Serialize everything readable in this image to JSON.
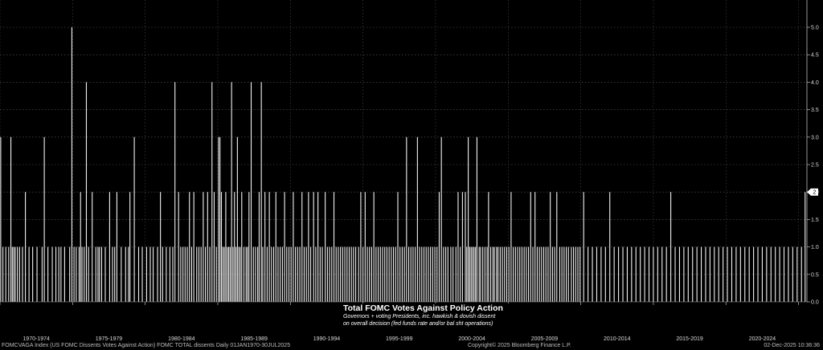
{
  "chart_data": {
    "type": "bar",
    "title": "Total FOMC Votes Against Policy Action",
    "subtitle_lines": [
      "Governors + voting Presidents, inc. hawkish & dovish dissent",
      "on overall decision (fed funds rate and/or bal sht operations)"
    ],
    "x_tick_labels": [
      "1970-1974",
      "1975-1979",
      "1980-1984",
      "1985-1989",
      "1990-1994",
      "1995-1999",
      "2000-2004",
      "2005-2009",
      "2010-2014",
      "2015-2019",
      "2020-2024"
    ],
    "xlim": [
      "1970-01-01",
      "2025-07-30"
    ],
    "y_tick_labels": [
      "0.0",
      "0.5",
      "1.0",
      "1.5",
      "2.0",
      "2.5",
      "3.0",
      "3.5",
      "4.0",
      "4.5",
      "5.0"
    ],
    "ylim": [
      0,
      5.3
    ],
    "grid": true,
    "last_value_label": "2",
    "series": [
      {
        "points": [
          [
            1970.05,
            3
          ],
          [
            1970.2,
            1
          ],
          [
            1970.4,
            1
          ],
          [
            1970.6,
            1
          ],
          [
            1970.75,
            3
          ],
          [
            1970.85,
            1
          ],
          [
            1970.95,
            1
          ],
          [
            1971.05,
            1
          ],
          [
            1971.2,
            1
          ],
          [
            1971.35,
            1
          ],
          [
            1971.55,
            1
          ],
          [
            1971.75,
            2
          ],
          [
            1972.0,
            1
          ],
          [
            1972.25,
            1
          ],
          [
            1972.55,
            1
          ],
          [
            1972.9,
            1
          ],
          [
            1973.05,
            3
          ],
          [
            1973.3,
            1
          ],
          [
            1973.6,
            1
          ],
          [
            1973.85,
            1
          ],
          [
            1974.05,
            1
          ],
          [
            1974.2,
            1
          ],
          [
            1974.45,
            1
          ],
          [
            1974.8,
            1
          ],
          [
            1974.95,
            5
          ],
          [
            1975.1,
            1
          ],
          [
            1975.25,
            1
          ],
          [
            1975.45,
            1
          ],
          [
            1975.55,
            2
          ],
          [
            1975.65,
            1
          ],
          [
            1975.8,
            1
          ],
          [
            1975.95,
            4
          ],
          [
            1976.1,
            1
          ],
          [
            1976.35,
            2
          ],
          [
            1976.6,
            1
          ],
          [
            1976.75,
            1
          ],
          [
            1976.85,
            1
          ],
          [
            1977.0,
            1
          ],
          [
            1977.25,
            1
          ],
          [
            1977.55,
            2
          ],
          [
            1977.75,
            1
          ],
          [
            1977.9,
            1
          ],
          [
            1978.05,
            2
          ],
          [
            1978.35,
            1
          ],
          [
            1978.65,
            1
          ],
          [
            1978.85,
            1
          ],
          [
            1978.95,
            2
          ],
          [
            1979.25,
            3
          ],
          [
            1979.55,
            1
          ],
          [
            1979.8,
            1
          ],
          [
            1980.1,
            1
          ],
          [
            1980.35,
            1
          ],
          [
            1980.55,
            1
          ],
          [
            1980.85,
            1
          ],
          [
            1981.05,
            2
          ],
          [
            1981.2,
            1
          ],
          [
            1981.45,
            1
          ],
          [
            1981.7,
            1
          ],
          [
            1981.9,
            1
          ],
          [
            1982.05,
            4
          ],
          [
            1982.3,
            2
          ],
          [
            1982.45,
            1
          ],
          [
            1982.6,
            1
          ],
          [
            1982.75,
            1
          ],
          [
            1982.9,
            1
          ],
          [
            1983.05,
            2
          ],
          [
            1983.2,
            1
          ],
          [
            1983.35,
            2
          ],
          [
            1983.55,
            1
          ],
          [
            1983.7,
            1
          ],
          [
            1983.85,
            1
          ],
          [
            1984.0,
            2
          ],
          [
            1984.15,
            1
          ],
          [
            1984.3,
            2
          ],
          [
            1984.45,
            1
          ],
          [
            1984.6,
            4
          ],
          [
            1984.75,
            2
          ],
          [
            1984.9,
            1
          ],
          [
            1985.05,
            3
          ],
          [
            1985.15,
            3
          ],
          [
            1985.25,
            2
          ],
          [
            1985.35,
            1
          ],
          [
            1985.45,
            1
          ],
          [
            1985.55,
            2
          ],
          [
            1985.65,
            1
          ],
          [
            1985.75,
            1
          ],
          [
            1985.85,
            1
          ],
          [
            1985.95,
            4
          ],
          [
            1986.05,
            1
          ],
          [
            1986.15,
            2
          ],
          [
            1986.25,
            1
          ],
          [
            1986.35,
            3
          ],
          [
            1986.45,
            1
          ],
          [
            1986.55,
            1
          ],
          [
            1986.65,
            2
          ],
          [
            1986.8,
            1
          ],
          [
            1986.95,
            1
          ],
          [
            1987.05,
            1
          ],
          [
            1987.15,
            2
          ],
          [
            1987.3,
            4
          ],
          [
            1987.45,
            1
          ],
          [
            1987.6,
            1
          ],
          [
            1987.75,
            1
          ],
          [
            1987.85,
            2
          ],
          [
            1988.0,
            4
          ],
          [
            1988.1,
            1
          ],
          [
            1988.25,
            2
          ],
          [
            1988.4,
            1
          ],
          [
            1988.55,
            2
          ],
          [
            1988.7,
            1
          ],
          [
            1988.85,
            1
          ],
          [
            1989.0,
            2
          ],
          [
            1989.15,
            1
          ],
          [
            1989.3,
            1
          ],
          [
            1989.45,
            1
          ],
          [
            1989.6,
            2
          ],
          [
            1989.75,
            1
          ],
          [
            1989.9,
            1
          ],
          [
            1990.05,
            1
          ],
          [
            1990.2,
            2
          ],
          [
            1990.35,
            1
          ],
          [
            1990.5,
            1
          ],
          [
            1990.65,
            1
          ],
          [
            1990.8,
            2
          ],
          [
            1990.95,
            1
          ],
          [
            1991.1,
            1
          ],
          [
            1991.25,
            2
          ],
          [
            1991.4,
            1
          ],
          [
            1991.6,
            2
          ],
          [
            1991.75,
            1
          ],
          [
            1991.9,
            2
          ],
          [
            1992.05,
            1
          ],
          [
            1992.2,
            1
          ],
          [
            1992.4,
            2
          ],
          [
            1992.55,
            1
          ],
          [
            1992.7,
            1
          ],
          [
            1992.85,
            1
          ],
          [
            1993.0,
            2
          ],
          [
            1993.15,
            1
          ],
          [
            1993.3,
            1
          ],
          [
            1993.45,
            1
          ],
          [
            1993.6,
            1
          ],
          [
            1993.75,
            1
          ],
          [
            1993.9,
            1
          ],
          [
            1994.05,
            1
          ],
          [
            1994.2,
            1
          ],
          [
            1994.35,
            1
          ],
          [
            1994.5,
            1
          ],
          [
            1994.7,
            1
          ],
          [
            1994.85,
            2
          ],
          [
            1995.0,
            1
          ],
          [
            1995.15,
            2
          ],
          [
            1995.3,
            1
          ],
          [
            1995.45,
            1
          ],
          [
            1995.6,
            1
          ],
          [
            1995.75,
            2
          ],
          [
            1995.9,
            1
          ],
          [
            1996.05,
            1
          ],
          [
            1996.2,
            1
          ],
          [
            1996.35,
            1
          ],
          [
            1996.5,
            1
          ],
          [
            1996.65,
            1
          ],
          [
            1996.8,
            1
          ],
          [
            1996.95,
            1
          ],
          [
            1997.1,
            1
          ],
          [
            1997.25,
            1
          ],
          [
            1997.4,
            2
          ],
          [
            1997.55,
            1
          ],
          [
            1997.7,
            1
          ],
          [
            1997.85,
            1
          ],
          [
            1998.0,
            3
          ],
          [
            1998.15,
            1
          ],
          [
            1998.3,
            1
          ],
          [
            1998.45,
            1
          ],
          [
            1998.6,
            1
          ],
          [
            1998.75,
            3
          ],
          [
            1998.9,
            1
          ],
          [
            1999.05,
            1
          ],
          [
            1999.2,
            1
          ],
          [
            1999.35,
            1
          ],
          [
            1999.5,
            1
          ],
          [
            1999.65,
            1
          ],
          [
            1999.8,
            1
          ],
          [
            1999.95,
            1
          ],
          [
            2000.1,
            1
          ],
          [
            2000.25,
            2
          ],
          [
            2000.4,
            3
          ],
          [
            2000.55,
            1
          ],
          [
            2000.7,
            1
          ],
          [
            2000.85,
            1
          ],
          [
            2001.05,
            1
          ],
          [
            2001.2,
            1
          ],
          [
            2001.4,
            1
          ],
          [
            2001.55,
            2
          ],
          [
            2001.7,
            1
          ],
          [
            2001.85,
            2
          ],
          [
            2002.05,
            2
          ],
          [
            2002.15,
            1
          ],
          [
            2002.25,
            3
          ],
          [
            2002.35,
            1
          ],
          [
            2002.45,
            1
          ],
          [
            2002.55,
            1
          ],
          [
            2002.65,
            1
          ],
          [
            2002.75,
            1
          ],
          [
            2002.85,
            3
          ],
          [
            2003.0,
            1
          ],
          [
            2003.1,
            1
          ],
          [
            2003.25,
            1
          ],
          [
            2003.4,
            1
          ],
          [
            2003.55,
            1
          ],
          [
            2003.65,
            2
          ],
          [
            2003.8,
            1
          ],
          [
            2003.95,
            1
          ],
          [
            2004.05,
            1
          ],
          [
            2004.2,
            1
          ],
          [
            2004.3,
            1
          ],
          [
            2004.45,
            1
          ],
          [
            2004.6,
            1
          ],
          [
            2004.75,
            1
          ],
          [
            2004.9,
            1
          ],
          [
            2005.05,
            1
          ],
          [
            2005.2,
            2
          ],
          [
            2005.35,
            1
          ],
          [
            2005.5,
            1
          ],
          [
            2005.65,
            1
          ],
          [
            2005.8,
            1
          ],
          [
            2005.95,
            1
          ],
          [
            2006.1,
            1
          ],
          [
            2006.25,
            1
          ],
          [
            2006.4,
            1
          ],
          [
            2006.55,
            2
          ],
          [
            2006.7,
            1
          ],
          [
            2006.85,
            2
          ],
          [
            2007.0,
            1
          ],
          [
            2007.15,
            1
          ],
          [
            2007.3,
            1
          ],
          [
            2007.45,
            1
          ],
          [
            2007.6,
            1
          ],
          [
            2007.75,
            1
          ],
          [
            2007.9,
            2
          ],
          [
            2008.05,
            1
          ],
          [
            2008.2,
            1
          ],
          [
            2008.35,
            2
          ],
          [
            2008.55,
            1
          ],
          [
            2008.7,
            1
          ],
          [
            2008.85,
            1
          ],
          [
            2009.0,
            1
          ],
          [
            2009.15,
            1
          ],
          [
            2009.35,
            1
          ],
          [
            2009.5,
            1
          ],
          [
            2009.65,
            1
          ],
          [
            2009.8,
            1
          ],
          [
            2009.95,
            1
          ],
          [
            2010.2,
            2
          ],
          [
            2010.5,
            1
          ],
          [
            2010.8,
            1
          ],
          [
            2011.1,
            1
          ],
          [
            2011.4,
            1
          ],
          [
            2011.7,
            1
          ],
          [
            2012.0,
            2
          ],
          [
            2012.3,
            1
          ],
          [
            2012.6,
            1
          ],
          [
            2012.9,
            1
          ],
          [
            2013.2,
            1
          ],
          [
            2013.5,
            1
          ],
          [
            2013.8,
            1
          ],
          [
            2014.1,
            1
          ],
          [
            2014.4,
            1
          ],
          [
            2014.7,
            1
          ],
          [
            2015.0,
            1
          ],
          [
            2015.3,
            1
          ],
          [
            2015.6,
            1
          ],
          [
            2015.9,
            1
          ],
          [
            2016.2,
            2
          ],
          [
            2016.5,
            1
          ],
          [
            2016.8,
            1
          ],
          [
            2017.1,
            1
          ],
          [
            2017.4,
            1
          ],
          [
            2017.7,
            1
          ],
          [
            2018.0,
            1
          ],
          [
            2018.3,
            1
          ],
          [
            2018.6,
            1
          ],
          [
            2018.9,
            1
          ],
          [
            2019.2,
            1
          ],
          [
            2019.5,
            1
          ],
          [
            2019.8,
            1
          ],
          [
            2020.1,
            1
          ],
          [
            2020.4,
            1
          ],
          [
            2020.7,
            1
          ],
          [
            2021.0,
            1
          ],
          [
            2021.3,
            1
          ],
          [
            2021.6,
            1
          ],
          [
            2021.9,
            1
          ],
          [
            2022.2,
            1
          ],
          [
            2022.5,
            1
          ],
          [
            2022.8,
            1
          ],
          [
            2023.1,
            1
          ],
          [
            2023.4,
            1
          ],
          [
            2023.7,
            1
          ],
          [
            2024.0,
            1
          ],
          [
            2024.3,
            1
          ],
          [
            2024.6,
            1
          ],
          [
            2024.9,
            1
          ],
          [
            2025.2,
            1
          ],
          [
            2025.45,
            2
          ]
        ]
      }
    ]
  },
  "footer": {
    "left": "FOMCVAGA Index (US FOMC Dissents Votes Against Action) FOMC TOTAL dissents Daily 01JAN1970-30JUL2025",
    "middle": "Copyright© 2025 Bloomberg Finance L.P.",
    "right": "02-Dec-2025 10:36:36"
  }
}
